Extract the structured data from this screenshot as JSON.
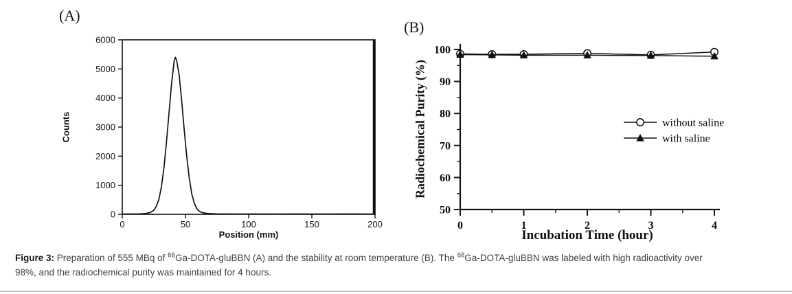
{
  "figure": {
    "panel_a_label": "(A)",
    "panel_b_label": "(B)"
  },
  "caption": {
    "label": "Figure 3:",
    "text_1": " Preparation of 555 MBq of ",
    "sup_1": "68",
    "text_2": "Ga-DOTA-gluBBN (A) and the stability at room temperature (B). The ",
    "sup_2": "68",
    "text_3": "Ga-DOTA-gluBBN was labeled with high radioactivity over",
    "text_4": "98%, and the radiochemical purity was maintained for 4 hours."
  },
  "colors": {
    "ink": "#111111",
    "caption_text": "#3f3f3f",
    "divider": "#c9c9c9",
    "background": "#ffffff"
  },
  "chart_data": [
    {
      "id": "radio-tlc-chromatogram",
      "type": "line",
      "title": "",
      "xlabel": "Position (mm)",
      "ylabel": "Counts",
      "xlim": [
        0,
        200
      ],
      "ylim": [
        0,
        6000
      ],
      "xticks": [
        0,
        50,
        100,
        150,
        200
      ],
      "yticks": [
        0,
        1000,
        2000,
        3000,
        4000,
        5000,
        6000
      ],
      "frame": "box",
      "grid": false,
      "series": [
        {
          "name": "counts trace",
          "marker": "none",
          "x": [
            0,
            8,
            14,
            18,
            22,
            25,
            27,
            29,
            31,
            33,
            35,
            37,
            39,
            41,
            42,
            43,
            45,
            47,
            49,
            51,
            53,
            55,
            57,
            59,
            61,
            64,
            68,
            74,
            82,
            92,
            105,
            120,
            140,
            160,
            180,
            196,
            200
          ],
          "y": [
            10,
            12,
            15,
            25,
            60,
            140,
            280,
            520,
            950,
            1600,
            2500,
            3500,
            4500,
            5250,
            5400,
            5300,
            4800,
            3900,
            2900,
            2000,
            1250,
            700,
            380,
            190,
            100,
            50,
            25,
            15,
            12,
            10,
            12,
            10,
            12,
            10,
            12,
            10,
            12
          ],
          "peak_position_mm": 42,
          "peak_counts": 5400
        }
      ]
    },
    {
      "id": "stability-plot",
      "type": "line",
      "title": "",
      "xlabel": "Incubation Time (hour)",
      "ylabel": "Radiochemical Purity (%)",
      "xlim": [
        0,
        4
      ],
      "ylim": [
        50,
        100
      ],
      "xticks": [
        0,
        1,
        2,
        3,
        4
      ],
      "xminorticks": [
        0.5,
        1.5,
        2.5,
        3.5
      ],
      "yticks": [
        50,
        60,
        70,
        80,
        90,
        100
      ],
      "yminorticks": [
        55,
        65,
        75,
        85,
        95
      ],
      "frame": "L",
      "grid": false,
      "legend_position": "middle-right",
      "x": [
        0,
        0.5,
        1,
        2,
        3,
        4
      ],
      "series": [
        {
          "name": "without saline",
          "marker": "circle-open",
          "values": [
            98.6,
            98.5,
            98.5,
            98.8,
            98.3,
            99.2
          ]
        },
        {
          "name": "with saline",
          "marker": "triangle-filled",
          "values": [
            98.4,
            98.3,
            98.2,
            98.2,
            98.1,
            97.9
          ]
        }
      ]
    }
  ]
}
